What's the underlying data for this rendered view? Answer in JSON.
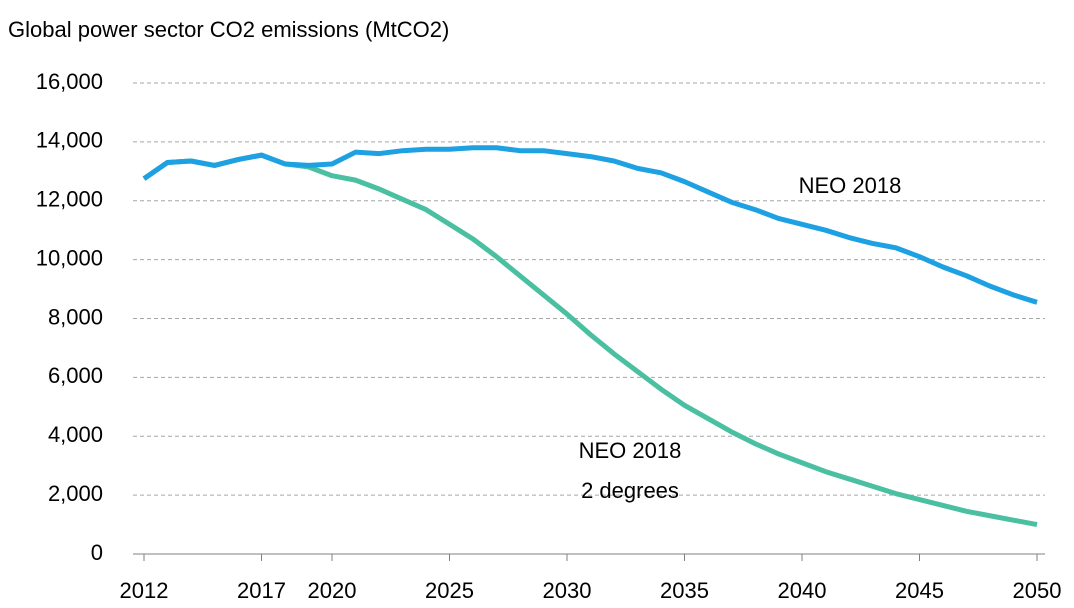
{
  "chart_data": {
    "type": "line",
    "title": "Global power sector CO2 emissions  (MtCO2)",
    "x": [
      2012,
      2013,
      2014,
      2015,
      2016,
      2017,
      2018,
      2019,
      2020,
      2021,
      2022,
      2023,
      2024,
      2025,
      2026,
      2027,
      2028,
      2029,
      2030,
      2031,
      2032,
      2033,
      2034,
      2035,
      2036,
      2037,
      2038,
      2039,
      2040,
      2041,
      2042,
      2043,
      2044,
      2045,
      2046,
      2047,
      2048,
      2049,
      2050
    ],
    "series": [
      {
        "name": "NEO 2018",
        "color": "#1da1e2",
        "values": [
          12750,
          13300,
          13350,
          13200,
          13400,
          13550,
          13250,
          13200,
          13250,
          13650,
          13600,
          13700,
          13750,
          13750,
          13800,
          13800,
          13700,
          13700,
          13600,
          13500,
          13350,
          13100,
          12950,
          12650,
          12300,
          11950,
          11700,
          11400,
          11200,
          11000,
          10750,
          10550,
          10400,
          10100,
          9750,
          9450,
          9100,
          8800,
          8550
        ]
      },
      {
        "name_lines": [
          "NEO 2018",
          "2 degrees"
        ],
        "color": "#4bbfa2",
        "values": [
          12750,
          13300,
          13350,
          13200,
          13400,
          13550,
          13250,
          13150,
          12850,
          12700,
          12400,
          12050,
          11700,
          11200,
          10700,
          10100,
          9450,
          8800,
          8150,
          7450,
          6800,
          6200,
          5600,
          5050,
          4600,
          4150,
          3750,
          3400,
          3100,
          2800,
          2550,
          2300,
          2050,
          1850,
          1650,
          1450,
          1300,
          1150,
          1000
        ]
      }
    ],
    "xlim": [
      2012,
      2050
    ],
    "xticks": [
      2012,
      2017,
      2020,
      2025,
      2030,
      2035,
      2040,
      2045,
      2050
    ],
    "ylim": [
      0,
      16000
    ],
    "yticks": [
      0,
      {
        "value": 2000,
        "label": "2,000"
      },
      {
        "value": 4000,
        "label": "4,000"
      },
      {
        "value": 6000,
        "label": "6,000"
      },
      {
        "value": 8000,
        "label": "8,000"
      },
      {
        "value": 10000,
        "label": "10,000"
      },
      {
        "value": 12000,
        "label": "12,000"
      },
      {
        "value": 14000,
        "label": "14,000"
      },
      {
        "value": 16000,
        "label": "16,000"
      }
    ],
    "grid": true
  }
}
